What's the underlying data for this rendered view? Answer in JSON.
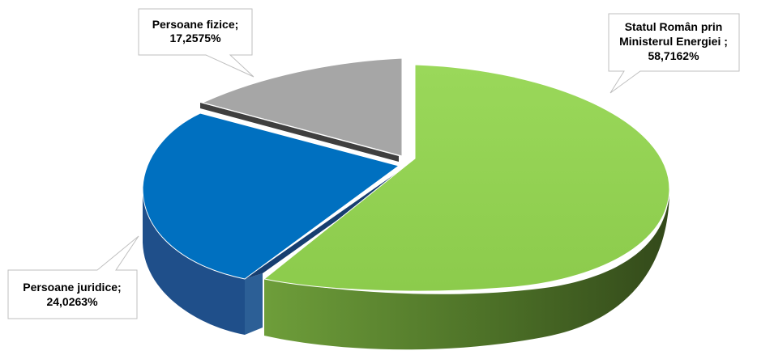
{
  "chart_data": {
    "type": "pie",
    "style": "3d-exploded",
    "title": "",
    "slices": [
      {
        "label_lines": [
          "Statul Român prin",
          "Ministerul Energiei ;",
          "58,7162%"
        ],
        "value": 58.7162,
        "color": "#92d050"
      },
      {
        "label_lines": [
          "Persoane juridice;",
          "24,0263%"
        ],
        "value": 24.0263,
        "color": "#0070c0"
      },
      {
        "label_lines": [
          "Persoane fizice;",
          "17,2575%"
        ],
        "value": 17.2575,
        "color": "#a6a6a6"
      }
    ],
    "legend": "none",
    "data_labels": "callouts"
  }
}
